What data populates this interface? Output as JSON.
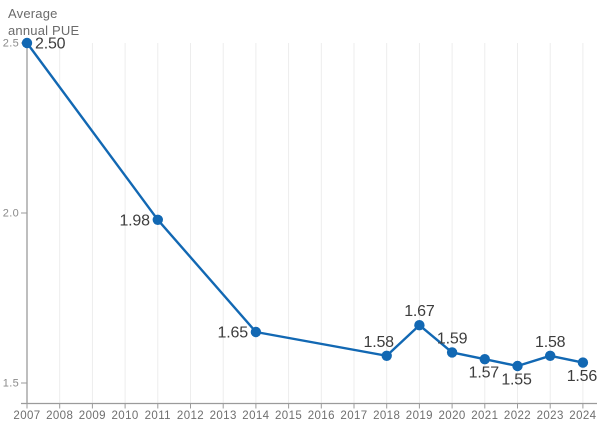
{
  "labels": {
    "ylabel": "Average annual PUE"
  },
  "chart_data": {
    "type": "line",
    "title": "Average annual PUE",
    "ylabel": "Average annual PUE",
    "xlabel": "",
    "x": [
      2007,
      2011,
      2014,
      2018,
      2019,
      2020,
      2021,
      2022,
      2023,
      2024
    ],
    "y": [
      2.5,
      1.98,
      1.65,
      1.58,
      1.67,
      1.59,
      1.57,
      1.55,
      1.58,
      1.56
    ],
    "point_labels": [
      "2.50",
      "1.98",
      "1.65",
      "1.58",
      "1.67",
      "1.59",
      "1.57",
      "1.55",
      "1.58",
      "1.56"
    ],
    "point_label_positions": [
      "right",
      "left",
      "left",
      "above-left",
      "above",
      "above",
      "below",
      "below",
      "above",
      "below"
    ],
    "x_ticks": [
      "2007",
      "2008",
      "2009",
      "2010",
      "2011",
      "2012",
      "2013",
      "2014",
      "2015",
      "2016",
      "2017",
      "2018",
      "2019",
      "2020",
      "2021",
      "2022",
      "2023",
      "2024"
    ],
    "y_ticks": [
      {
        "value": 1.5,
        "label": "1.5"
      },
      {
        "value": 2.0,
        "label": "2.0"
      },
      {
        "value": 2.5,
        "label": "2.5"
      }
    ],
    "xlim": [
      2007,
      2024
    ],
    "ylim": [
      1.5,
      2.5
    ],
    "grid": "vertical-only",
    "legend": "none",
    "colors": {
      "line": "#1268b3",
      "marker": "#1268b3",
      "axis": "#9b9b9b",
      "grid": "#ededed",
      "point_label": "#3d3d3d",
      "tick_label": "#6f6f6f",
      "background": "#ffffff"
    }
  }
}
